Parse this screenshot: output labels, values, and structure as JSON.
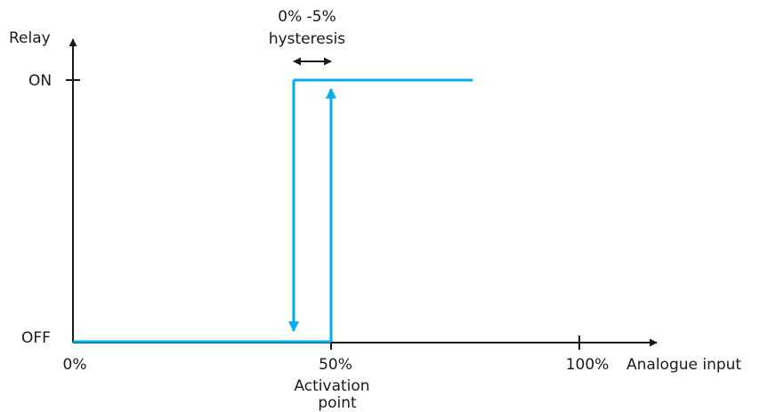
{
  "axes": {
    "y_label": "Relay",
    "x_label": "Analogue input",
    "y_ticks": [
      "ON",
      "OFF"
    ],
    "x_ticks": [
      "0%",
      "50%",
      "100%"
    ]
  },
  "annotations": {
    "hysteresis_line1": "0% -5%",
    "hysteresis_line2": "hysteresis",
    "activation_line1": "Activation",
    "activation_line2": "point"
  },
  "colors": {
    "axis": "#1a1a1a",
    "signal": "#00aeef"
  },
  "chart_data": {
    "type": "line",
    "xlabel": "Analogue input",
    "ylabel": "Relay",
    "x_ticks": [
      "0%",
      "50%",
      "100%"
    ],
    "y_ticks": [
      "OFF",
      "ON"
    ],
    "series": [
      {
        "x": [
          0,
          50,
          50,
          77
        ],
        "y": [
          "OFF",
          "OFF",
          "ON",
          "ON"
        ]
      },
      {
        "x": [
          43,
          43
        ],
        "y": [
          "ON",
          "OFF"
        ]
      }
    ],
    "hysteresis_range": "0% -5%",
    "activation_point": 50
  }
}
